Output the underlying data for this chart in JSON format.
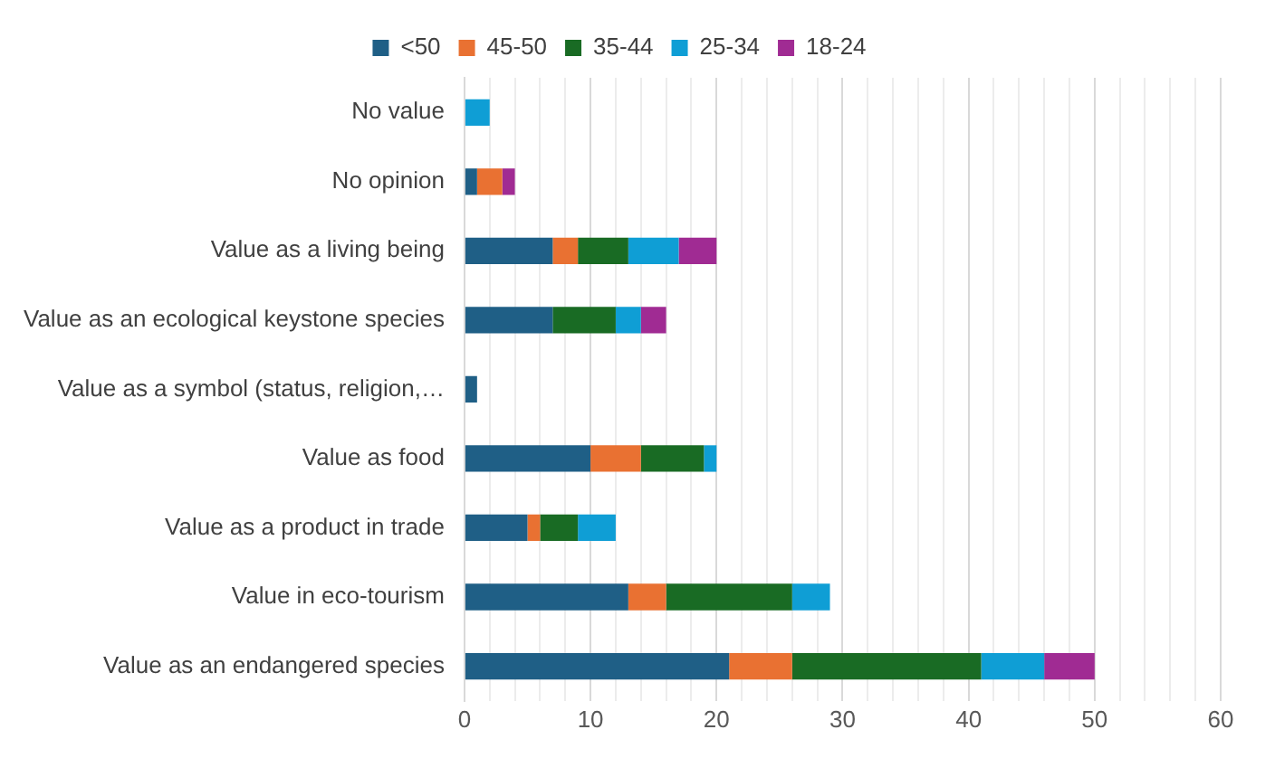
{
  "chart_data": {
    "type": "bar",
    "orientation": "horizontal",
    "stacked": true,
    "legend": "top",
    "grid": "x",
    "categories": [
      "No value",
      "No opinion",
      "Value as a living being",
      "Value as an ecological keystone species",
      "Value as a symbol (status, religion,…",
      "Value as food",
      "Value as a product in trade",
      "Value in eco-tourism",
      "Value as an endangered species"
    ],
    "series": [
      {
        "name": "<50",
        "color": "#1f5f86",
        "values": [
          0,
          1,
          7,
          7,
          1,
          10,
          5,
          13,
          21
        ]
      },
      {
        "name": "45-50",
        "color": "#e97132",
        "values": [
          0,
          2,
          2,
          0,
          0,
          4,
          1,
          3,
          5
        ]
      },
      {
        "name": "35-44",
        "color": "#196b24",
        "values": [
          0,
          0,
          4,
          5,
          0,
          5,
          3,
          10,
          15
        ]
      },
      {
        "name": "25-34",
        "color": "#0f9ed5",
        "values": [
          2,
          0,
          4,
          2,
          0,
          1,
          3,
          3,
          5
        ]
      },
      {
        "name": "18-24",
        "color": "#a02b93",
        "values": [
          0,
          1,
          3,
          2,
          0,
          0,
          0,
          0,
          4
        ]
      }
    ],
    "xlim": [
      0,
      60
    ],
    "xticks": [
      0,
      {
        "value": 2,
        "label": null
      },
      {
        "value": 4,
        "label": null
      },
      {
        "value": 6,
        "label": null
      },
      {
        "value": 8,
        "label": null
      },
      10,
      {
        "value": 12,
        "label": null
      },
      {
        "value": 14,
        "label": null
      },
      {
        "value": 16,
        "label": null
      },
      {
        "value": 18,
        "label": null
      },
      20,
      {
        "value": 22,
        "label": null
      },
      {
        "value": 24,
        "label": null
      },
      {
        "value": 26,
        "label": null
      },
      {
        "value": 28,
        "label": null
      },
      30,
      {
        "value": 32,
        "label": null
      },
      {
        "value": 34,
        "label": null
      },
      {
        "value": 36,
        "label": null
      },
      {
        "value": 38,
        "label": null
      },
      40,
      {
        "value": 42,
        "label": null
      },
      {
        "value": 44,
        "label": null
      },
      {
        "value": 46,
        "label": null
      },
      {
        "value": 48,
        "label": null
      },
      50,
      {
        "value": 52,
        "label": null
      },
      {
        "value": 54,
        "label": null
      },
      {
        "value": 56,
        "label": null
      },
      {
        "value": 58,
        "label": null
      },
      60
    ]
  }
}
